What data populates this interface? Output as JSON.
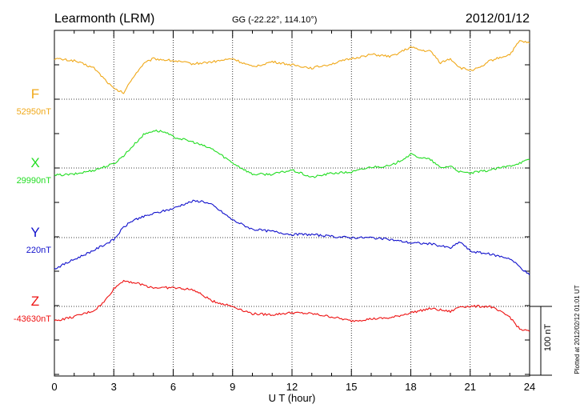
{
  "header": {
    "station": "Learmonth (LRM)",
    "coords": "GG (-22.22°, 114.10°)",
    "date": "2012/01/12"
  },
  "plotted_note": "Plotted at 2012/02/12 01:01 UT",
  "colors": {
    "F": "#f0a818",
    "X": "#22dd22",
    "Y": "#1010cc",
    "Z": "#ee1111",
    "axis": "#000000"
  },
  "chart_data": {
    "type": "line",
    "xlabel": "U T (hour)",
    "xlim": [
      0,
      24
    ],
    "x_ticks": [
      0,
      3,
      6,
      9,
      12,
      15,
      18,
      21,
      24
    ],
    "x_tick_labels": [
      "0",
      "3",
      "6",
      "9",
      "12",
      "15",
      "18",
      "21",
      "24"
    ],
    "y_unit": "nT",
    "scale_bar": {
      "label": "100 nT",
      "value_nT": 100
    },
    "grid": "dotted",
    "series": [
      {
        "name": "F",
        "baseline_label": "52950nT",
        "baseline_nT": 52950,
        "x": [
          0,
          1,
          2,
          2.5,
          3,
          3.5,
          4,
          4.5,
          5,
          6,
          7,
          8,
          9,
          10,
          11,
          12,
          13,
          14,
          15,
          16,
          17,
          18,
          18.5,
          19,
          19.5,
          20,
          20.5,
          21,
          21.5,
          22,
          23,
          23.5,
          24
        ],
        "values": [
          39,
          37,
          30,
          20,
          10,
          6,
          22,
          34,
          39,
          37,
          34,
          36,
          39,
          31,
          36,
          33,
          30,
          34,
          39,
          43,
          41,
          50,
          47,
          46,
          35,
          39,
          30,
          28,
          30,
          37,
          43,
          56,
          54
        ]
      },
      {
        "name": "X",
        "baseline_label": "29990nT",
        "baseline_nT": 29990,
        "x": [
          0,
          1,
          2,
          3,
          3.5,
          4,
          4.5,
          5,
          5.5,
          6,
          7,
          8,
          9,
          10,
          11,
          12,
          13,
          14,
          15,
          16,
          17,
          18,
          18.5,
          19,
          19.5,
          20,
          20.5,
          21,
          22,
          23,
          24
        ],
        "values": [
          -7,
          -6,
          -2,
          4,
          12,
          22,
          32,
          36,
          35,
          30,
          25,
          18,
          5,
          -6,
          -6,
          -2,
          -9,
          -5,
          -4,
          1,
          2,
          13,
          10,
          8,
          0,
          2,
          -4,
          -5,
          -2,
          2,
          8
        ]
      },
      {
        "name": "Y",
        "baseline_label": "220nT",
        "baseline_nT": 220,
        "x": [
          0,
          1,
          2,
          3,
          3.5,
          4,
          5,
          6,
          6.5,
          7,
          7.5,
          8,
          9,
          10,
          11,
          12,
          13,
          14,
          15,
          16,
          17,
          18,
          19,
          20,
          20.5,
          21,
          22,
          23,
          24
        ],
        "values": [
          -30,
          -21,
          -12,
          -2,
          10,
          17,
          23,
          28,
          32,
          35,
          35,
          31,
          17,
          8,
          6,
          3,
          3,
          1,
          0,
          0,
          -2,
          -5,
          -6,
          -10,
          -4,
          -13,
          -16,
          -20,
          -36
        ]
      },
      {
        "name": "Z",
        "baseline_label": "-43630nT",
        "baseline_nT": -43630,
        "x": [
          0,
          1,
          2,
          2.5,
          3,
          3.5,
          4,
          5,
          6,
          7,
          8,
          9,
          10,
          11,
          12,
          13,
          14,
          15,
          16,
          17,
          18,
          19,
          20,
          20.5,
          21,
          22,
          23,
          23.5,
          24
        ],
        "values": [
          -14,
          -10,
          -4,
          4,
          17,
          25,
          23,
          18,
          18,
          16,
          5,
          0,
          -7,
          -8,
          -6,
          -7,
          -10,
          -14,
          -12,
          -11,
          -6,
          -2,
          -5,
          0,
          0,
          0,
          -10,
          -22,
          -24
        ]
      }
    ]
  }
}
